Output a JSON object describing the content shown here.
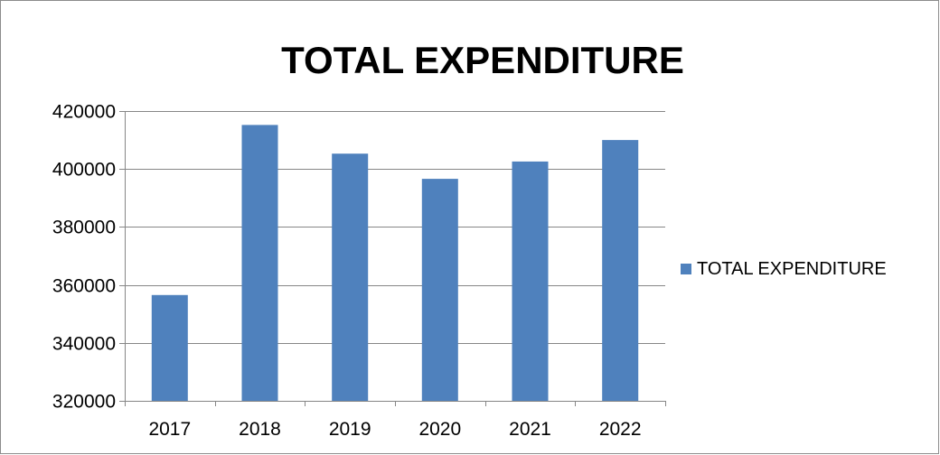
{
  "chart_data": {
    "type": "bar",
    "title": "TOTAL EXPENDITURE",
    "xlabel": "",
    "ylabel": "",
    "categories": [
      "2017",
      "2018",
      "2019",
      "2020",
      "2021",
      "2022"
    ],
    "series": [
      {
        "name": "TOTAL EXPENDITURE",
        "values": [
          356500,
          415200,
          405300,
          396600,
          402600,
          410000
        ],
        "color": "#4f81bd"
      }
    ],
    "ylim": [
      320000,
      420000
    ],
    "yticks": [
      "320000",
      "340000",
      "360000",
      "380000",
      "400000",
      "420000"
    ],
    "grid": true,
    "legend_position": "right",
    "colors": {
      "bar": "#4f81bd",
      "grid": "#868686",
      "axis": "#868686",
      "frame": "#8c8c8c"
    }
  }
}
